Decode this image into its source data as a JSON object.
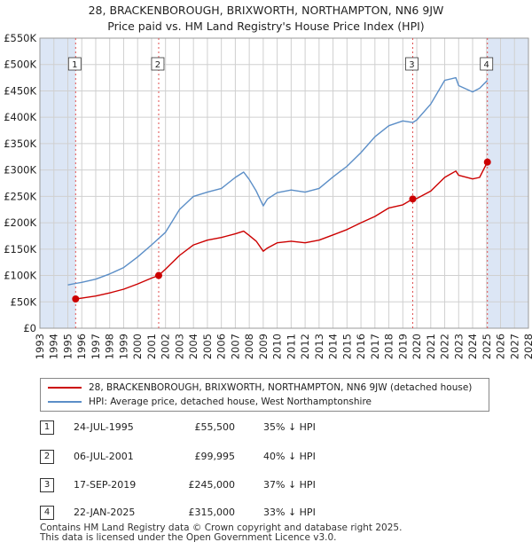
{
  "header": {
    "title_line1": "28, BRACKENBOROUGH, BRIXWORTH, NORTHAMPTON, NN6 9JW",
    "title_line2": "Price paid vs. HM Land Registry's House Price Index (HPI)"
  },
  "colors": {
    "price_line": "#cc0000",
    "hpi_line": "#5b8ec7",
    "shade": "#dce6f5",
    "grid": "#d0d0d0",
    "marker_vline": "#e05050"
  },
  "legend": {
    "property_label": "28, BRACKENBOROUGH, BRIXWORTH, NORTHAMPTON, NN6 9JW (detached house)",
    "hpi_label": "HPI: Average price, detached house, West Northamptonshire"
  },
  "sales": [
    {
      "id": "1",
      "date": "24-JUL-1995",
      "price": "£55,500",
      "hpi": "35% ↓ HPI"
    },
    {
      "id": "2",
      "date": "06-JUL-2001",
      "price": "£99,995",
      "hpi": "40% ↓ HPI"
    },
    {
      "id": "3",
      "date": "17-SEP-2019",
      "price": "£245,000",
      "hpi": "37% ↓ HPI"
    },
    {
      "id": "4",
      "date": "22-JAN-2025",
      "price": "£315,000",
      "hpi": "33% ↓ HPI"
    }
  ],
  "footer": {
    "line1": "Contains HM Land Registry data © Crown copyright and database right 2025.",
    "line2": "This data is licensed under the Open Government Licence v3.0."
  },
  "chart_data": {
    "type": "line",
    "title": "28, BRACKENBOROUGH, BRIXWORTH, NORTHAMPTON, NN6 9JW",
    "subtitle": "Price paid vs. HM Land Registry's House Price Index (HPI)",
    "xlabel": "",
    "ylabel": "",
    "xlim": [
      1993,
      2028
    ],
    "ylim": [
      0,
      550000
    ],
    "x_ticks": [
      "1993",
      "1994",
      "1995",
      "1996",
      "1997",
      "1998",
      "1999",
      "2000",
      "2001",
      "2002",
      "2003",
      "2004",
      "2005",
      "2006",
      "2007",
      "2008",
      "2009",
      "2010",
      "2011",
      "2012",
      "2013",
      "2014",
      "2015",
      "2016",
      "2017",
      "2018",
      "2019",
      "2020",
      "2021",
      "2022",
      "2023",
      "2024",
      "2025",
      "2026",
      "2027",
      "2028"
    ],
    "y_ticks": [
      0,
      50000,
      100000,
      150000,
      200000,
      250000,
      300000,
      350000,
      400000,
      450000,
      500000,
      550000
    ],
    "y_tick_labels": [
      "£0",
      "£50K",
      "£100K",
      "£150K",
      "£200K",
      "£250K",
      "£300K",
      "£350K",
      "£400K",
      "£450K",
      "£500K",
      "£550K"
    ],
    "grid": true,
    "shaded_ranges": [
      [
        1993,
        1995.56
      ],
      [
        2025.06,
        2028
      ]
    ],
    "sale_markers": [
      {
        "label": "1",
        "x": 1995.56,
        "y": 55500
      },
      {
        "label": "2",
        "x": 2001.51,
        "y": 99995
      },
      {
        "label": "3",
        "x": 2019.71,
        "y": 245000
      },
      {
        "label": "4",
        "x": 2025.06,
        "y": 315000
      }
    ],
    "series": [
      {
        "name": "28, BRACKENBOROUGH, BRIXWORTH, NORTHAMPTON, NN6 9JW (detached house)",
        "color": "#cc0000",
        "x": [
          1995.56,
          1996,
          1997,
          1998,
          1999,
          2000,
          2001,
          2001.51,
          2002,
          2003,
          2004,
          2005,
          2006,
          2007,
          2007.6,
          2008,
          2008.5,
          2009,
          2009.3,
          2010,
          2011,
          2012,
          2013,
          2014,
          2015,
          2016,
          2017,
          2018,
          2019,
          2019.71,
          2020,
          2021,
          2022,
          2022.8,
          2023,
          2024,
          2024.5,
          2025.06
        ],
        "y": [
          55500,
          57000,
          61000,
          67000,
          74000,
          84000,
          95000,
          99995,
          112000,
          138000,
          158000,
          167000,
          172000,
          179000,
          184000,
          176000,
          165000,
          146000,
          152000,
          162000,
          165000,
          162000,
          167000,
          177000,
          187000,
          200000,
          212000,
          228000,
          234000,
          245000,
          246000,
          260000,
          286000,
          298000,
          290000,
          283000,
          286000,
          315000
        ]
      },
      {
        "name": "HPI: Average price, detached house, West Northamptonshire",
        "color": "#5b8ec7",
        "x": [
          1995,
          1995.56,
          1996,
          1997,
          1998,
          1999,
          2000,
          2001,
          2002,
          2003,
          2004,
          2005,
          2006,
          2007,
          2007.6,
          2008,
          2008.5,
          2009,
          2009.3,
          2010,
          2011,
          2012,
          2013,
          2014,
          2015,
          2016,
          2017,
          2018,
          2019,
          2019.71,
          2020,
          2021,
          2022,
          2022.8,
          2023,
          2024,
          2024.5,
          2025.06
        ],
        "y": [
          82000,
          85000,
          87000,
          93000,
          103000,
          115000,
          135000,
          158000,
          182000,
          225000,
          250000,
          258000,
          265000,
          286000,
          296000,
          282000,
          260000,
          232000,
          245000,
          257000,
          262000,
          258000,
          265000,
          287000,
          307000,
          333000,
          363000,
          384000,
          393000,
          390000,
          395000,
          425000,
          470000,
          475000,
          460000,
          448000,
          455000,
          470000
        ]
      }
    ]
  }
}
